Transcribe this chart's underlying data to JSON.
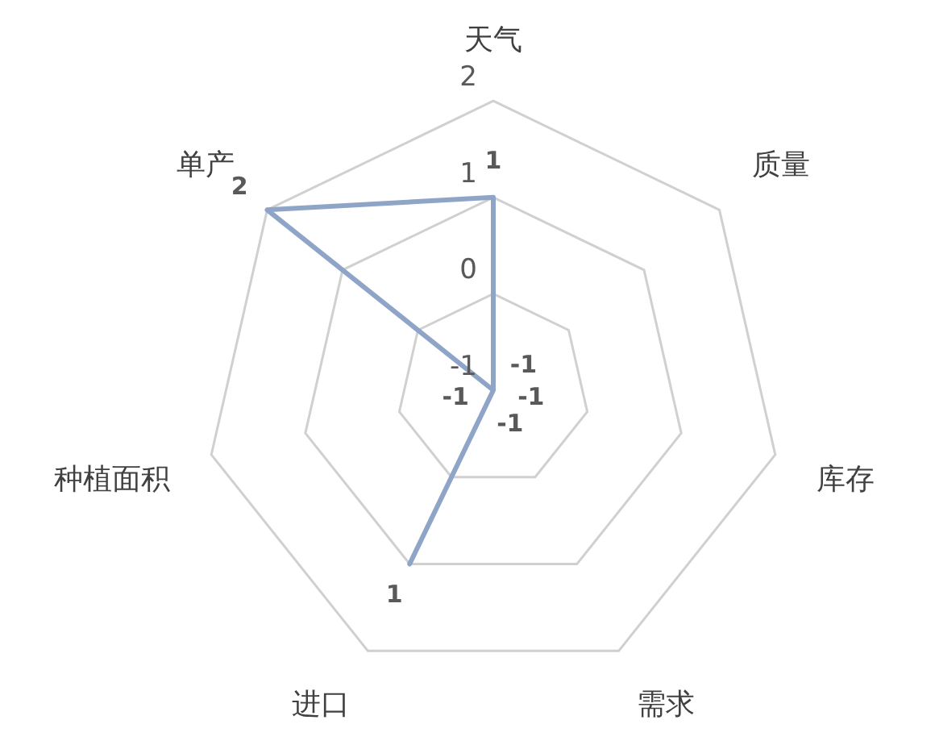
{
  "chart_data": {
    "type": "radar",
    "categories": [
      "天气",
      "质量",
      "库存",
      "需求",
      "进口",
      "种植面积",
      "单产"
    ],
    "series": [
      {
        "color": "#8ea5c8",
        "values": [
          1,
          -1,
          -1,
          -1,
          1,
          -1,
          2
        ]
      }
    ],
    "ylim": [
      -1,
      2
    ],
    "yticks": [
      -1,
      0,
      1,
      2
    ],
    "data_labels": true,
    "legend": false,
    "marker": "none",
    "grid": true
  }
}
